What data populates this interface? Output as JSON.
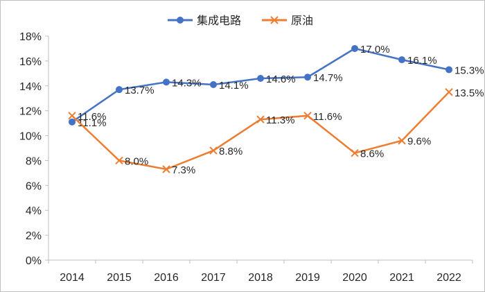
{
  "chart_data": {
    "type": "line",
    "title": "",
    "xlabel": "",
    "ylabel": "",
    "ylim": [
      0,
      18
    ],
    "y_ticks": [
      "0%",
      "2%",
      "4%",
      "6%",
      "8%",
      "10%",
      "12%",
      "14%",
      "16%",
      "18%"
    ],
    "y_tick_values": [
      0,
      2,
      4,
      6,
      8,
      10,
      12,
      14,
      16,
      18
    ],
    "categories": [
      "2014",
      "2015",
      "2016",
      "2017",
      "2018",
      "2019",
      "2020",
      "2021",
      "2022"
    ],
    "legend_position": "top-center",
    "grid": false,
    "series": [
      {
        "name": "集成电路",
        "marker": "circle",
        "color": "#4472c4",
        "values": [
          11.1,
          13.7,
          14.3,
          14.1,
          14.6,
          14.7,
          17.0,
          16.1,
          15.3
        ],
        "labels": [
          "11.1%",
          "13.7%",
          "14.3%",
          "14.1%",
          "14.6%",
          "14.7%",
          "17.0%",
          "16.1%",
          "15.3%"
        ]
      },
      {
        "name": "原油",
        "marker": "x",
        "color": "#ed7d31",
        "values": [
          11.6,
          8.0,
          7.3,
          8.8,
          11.3,
          11.6,
          8.6,
          9.6,
          13.5
        ],
        "labels": [
          "11.6%",
          "8.0%",
          "7.3%",
          "8.8%",
          "11.3%",
          "11.6%",
          "8.6%",
          "9.6%",
          "13.5%"
        ]
      }
    ]
  }
}
